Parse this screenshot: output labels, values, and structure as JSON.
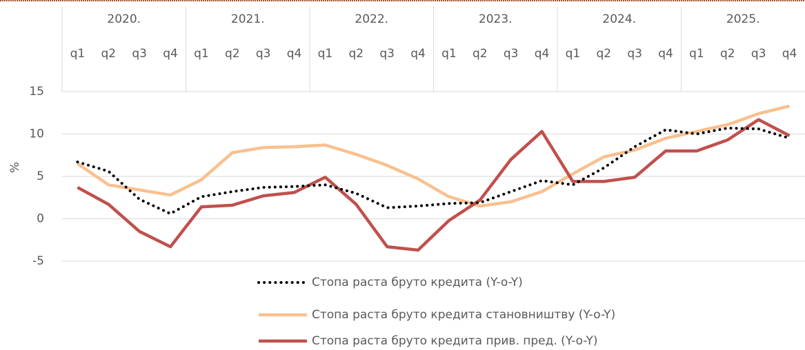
{
  "chart_data": {
    "type": "line",
    "y_label": "%",
    "years": [
      "2020.",
      "2021.",
      "2022.",
      "2023.",
      "2024.",
      "2025."
    ],
    "categories": [
      "q1",
      "q2",
      "q3",
      "q4",
      "q1",
      "q2",
      "q3",
      "q4",
      "q1",
      "q2",
      "q3",
      "q4",
      "q1",
      "q2",
      "q3",
      "q4",
      "q1",
      "q2",
      "q3",
      "q4",
      "q1",
      "q2",
      "q3",
      "q4"
    ],
    "series": [
      {
        "name": "Стопа раста бруто кредита (Y-o-Y)",
        "color": "#000000",
        "style": "dotted",
        "values": [
          6.7,
          5.6,
          2.3,
          0.6,
          2.6,
          3.2,
          3.7,
          3.8,
          4.0,
          3.0,
          1.3,
          1.5,
          1.8,
          1.9,
          3.2,
          4.5,
          4.0,
          6.0,
          8.5,
          10.5,
          10.0,
          10.7,
          10.6,
          9.5
        ]
      },
      {
        "name": "Стопа раста бруто кредита становништву (Y-o-Y)",
        "color": "#f9c08f",
        "style": "solid",
        "values": [
          6.5,
          4.0,
          3.4,
          2.8,
          4.6,
          7.8,
          8.4,
          8.5,
          8.7,
          7.6,
          6.3,
          4.7,
          2.6,
          1.5,
          2.0,
          3.2,
          5.3,
          7.3,
          8.1,
          9.5,
          10.3,
          11.1,
          12.4,
          13.3
        ]
      },
      {
        "name": "Стопа раста бруто кредита прив. пред. (Y-o-Y)",
        "color": "#c0504d",
        "style": "solid",
        "values": [
          3.7,
          1.7,
          -1.5,
          -3.3,
          1.4,
          1.6,
          2.7,
          3.1,
          4.9,
          1.7,
          -3.3,
          -3.7,
          -0.2,
          2.2,
          7.0,
          10.3,
          4.4,
          4.4,
          4.9,
          8.0,
          8.0,
          9.3,
          11.7,
          9.8
        ]
      }
    ],
    "ylim": [
      -5,
      15
    ],
    "yticks": [
      -5,
      0,
      5,
      10,
      15
    ],
    "grid": true
  }
}
